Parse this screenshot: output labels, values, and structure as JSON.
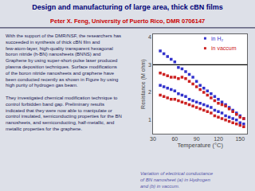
{
  "chart_data": {
    "type": "scatter",
    "title": "Design and manufacturing of large area, thick cBN films",
    "subtitle": "Peter X. Feng, University of Puerto Rico, DMR 0706147",
    "xlabel": "Temperature (°C)",
    "ylabel": "Resistance (M ohm)",
    "annotations": [
      {
        "text": "With the support of the DMR/NSF, the researchers has succeeded in synthesis of thick cBN film and few-atom-layer, high-quality transparent hexagonal boron nitride (h-BN) nanosheets (BNNS) and Graphene by using super-short-pulse laser produced plasma deposition techniques. Surface modifications of the boron nitride nanosheets and graphene have been conducted recently as shown in Figure by using high purity of hydrogen gas beam.\n\nThey investigated chemical modification technique to control forbidden band gap. Preliminary results indicated that they were now able to manipulate or control insulated, semiconducting properties for the BN nanosheets, and semiconducting, half-metallic, and metallic properties for the graphene."
      },
      {
        "text": "Variation of electrical conductance\nof BN nanosheet (a) in Hydrogen\nand (b) in vaccum."
      }
    ],
    "x": [
      40,
      45,
      50,
      55,
      60,
      65,
      70,
      75,
      80,
      85,
      90,
      95,
      100,
      105,
      110,
      115,
      120,
      125,
      130,
      135,
      140,
      145,
      150,
      155
    ],
    "series": [
      {
        "name": "in H₂",
        "color": "#3333cc",
        "marker": "square",
        "values": [
          3.5,
          3.4,
          3.3,
          3.2,
          3.1,
          2.9,
          2.85,
          2.75,
          2.65,
          2.55,
          2.4,
          2.25,
          2.15,
          2.05,
          1.95,
          1.85,
          1.75,
          1.65,
          1.55,
          1.45,
          1.35,
          1.25,
          1.15,
          1.05
        ],
        "lower": [
          2.25,
          2.2,
          2.15,
          2.1,
          2.05,
          1.95,
          1.9,
          1.85,
          1.75,
          1.7,
          1.65,
          1.6,
          1.55,
          1.5,
          1.45,
          1.35,
          1.3,
          1.25,
          1.15,
          1.1,
          1.05,
          1.0,
          0.9,
          0.85
        ]
      },
      {
        "name": "in vaccum",
        "color": "#cc2222",
        "marker": "square",
        "values": [
          2.7,
          2.65,
          2.6,
          2.55,
          2.55,
          2.5,
          2.55,
          2.5,
          2.4,
          2.3,
          2.2,
          2.1,
          2.0,
          1.9,
          1.8,
          1.7,
          1.6,
          1.55,
          1.5,
          1.4,
          1.3,
          1.2,
          1.1,
          1.05
        ],
        "lower": [
          1.9,
          1.85,
          1.8,
          1.75,
          1.75,
          1.7,
          1.65,
          1.6,
          1.55,
          1.5,
          1.45,
          1.4,
          1.35,
          1.3,
          1.25,
          1.15,
          1.1,
          1.05,
          1.0,
          0.95,
          0.9,
          0.85,
          0.8,
          0.75
        ]
      }
    ],
    "hline": 3.0,
    "xlim": [
      30,
      160
    ],
    "xticks": [
      30,
      60,
      90,
      120,
      150
    ],
    "ylim": [
      0.5,
      4.1
    ],
    "yticks": [
      1,
      2,
      3,
      4
    ],
    "grid": false
  }
}
